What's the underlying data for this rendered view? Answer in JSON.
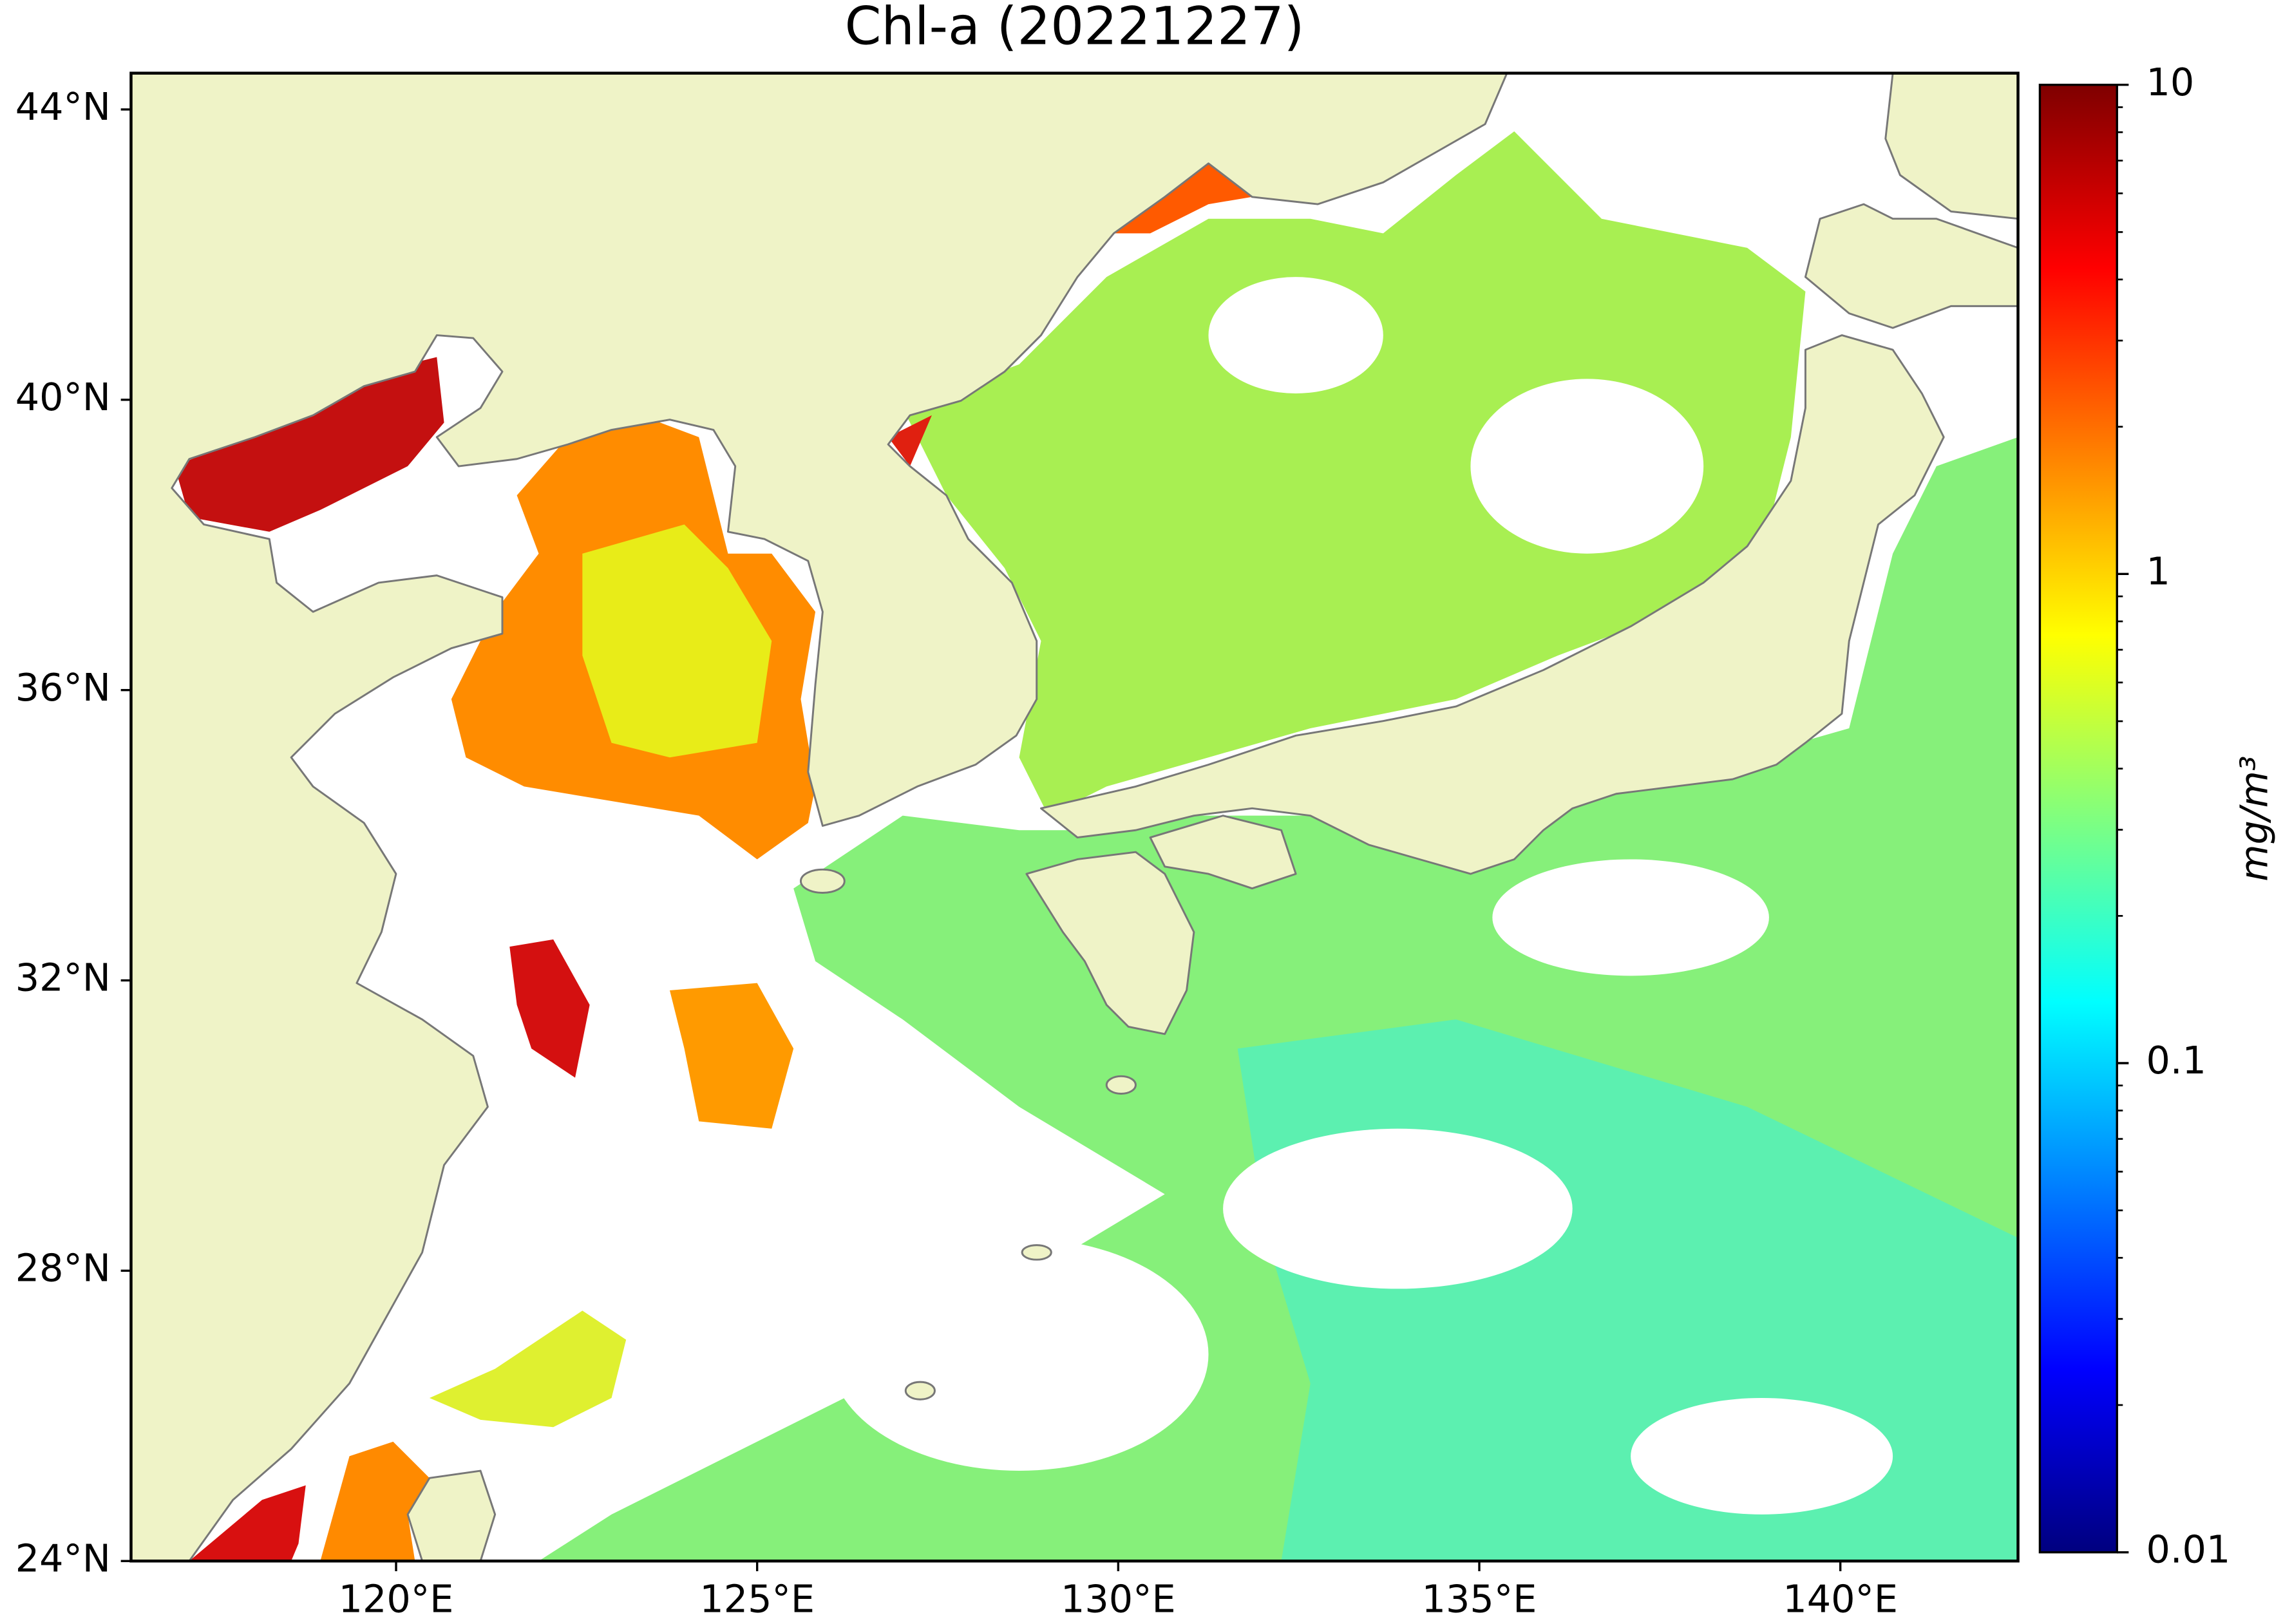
{
  "chart_data": {
    "type": "map",
    "title": "Chl-a (20221227)",
    "xlim": [
      116.33,
      142.46
    ],
    "ylim": [
      24,
      44.5
    ],
    "xticks": [
      {
        "value": 120,
        "label": "120°E"
      },
      {
        "value": 125,
        "label": "125°E"
      },
      {
        "value": 130,
        "label": "130°E"
      },
      {
        "value": 135,
        "label": "135°E"
      },
      {
        "value": 140,
        "label": "140°E"
      }
    ],
    "yticks": [
      {
        "value": 24,
        "label": "24°N"
      },
      {
        "value": 28,
        "label": "28°N"
      },
      {
        "value": 32,
        "label": "32°N"
      },
      {
        "value": 36,
        "label": "36°N"
      },
      {
        "value": 40,
        "label": "40°N"
      },
      {
        "value": 44,
        "label": "44°N"
      }
    ],
    "colorbar": {
      "label": "mg/m³",
      "colormap": "jet",
      "log_scale": true,
      "lim": [
        0.01,
        10
      ],
      "ticks": [
        0.01,
        0.1,
        1,
        10
      ],
      "minor_ticks": [
        0.02,
        0.03,
        0.04,
        0.05,
        0.06,
        0.07,
        0.08,
        0.09,
        0.2,
        0.3,
        0.4,
        0.5,
        0.6,
        0.7,
        0.8,
        0.9,
        2,
        3,
        4,
        5,
        6,
        7,
        8,
        9
      ]
    }
  }
}
